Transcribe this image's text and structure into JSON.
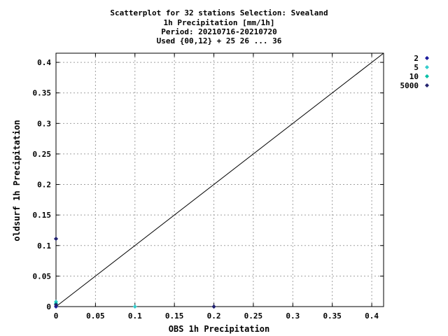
{
  "chart_data": {
    "type": "scatter",
    "title_lines": [
      "Scatterplot for   32 stations Selection: Svealand",
      "1h Precipitation [mm/1h]",
      "Period: 20210716-20210720",
      "Used {00,12} + 25 26 ... 36"
    ],
    "xlabel": "OBS 1h Precipitation",
    "ylabel": "oldsurf 1h Precipitation",
    "xlim": [
      0,
      0.415
    ],
    "ylim": [
      0,
      0.415
    ],
    "x_ticks": [
      0,
      0.05,
      0.1,
      0.15,
      0.2,
      0.25,
      0.3,
      0.35,
      0.4
    ],
    "y_ticks": [
      0,
      0.05,
      0.1,
      0.15,
      0.2,
      0.25,
      0.3,
      0.35,
      0.4
    ],
    "x_tick_labels": [
      "0",
      "0.05",
      "0.1",
      "0.15",
      "0.2",
      "0.25",
      "0.3",
      "0.35",
      "0.4"
    ],
    "y_tick_labels": [
      "0",
      "0.05",
      "0.1",
      "0.15",
      "0.2",
      "0.25",
      "0.3",
      "0.35",
      "0.4"
    ],
    "grid": true,
    "diagonal_line": true,
    "legend_position": "right",
    "series": [
      {
        "name": "2",
        "color": "#1a1a9c",
        "points": [
          [
            0,
            0
          ],
          [
            0,
            0.111
          ],
          [
            0.2,
            0
          ]
        ]
      },
      {
        "name": "5",
        "color": "#33cccc",
        "points": [
          [
            0,
            0.008
          ],
          [
            0.1,
            0
          ]
        ]
      },
      {
        "name": "10",
        "color": "#00bfa5",
        "points": [
          [
            0,
            0.005
          ]
        ]
      },
      {
        "name": "5000",
        "color": "#22226e",
        "points": [
          [
            0,
            0.003
          ],
          [
            0,
            0.111
          ],
          [
            0.2,
            0
          ]
        ]
      }
    ]
  }
}
